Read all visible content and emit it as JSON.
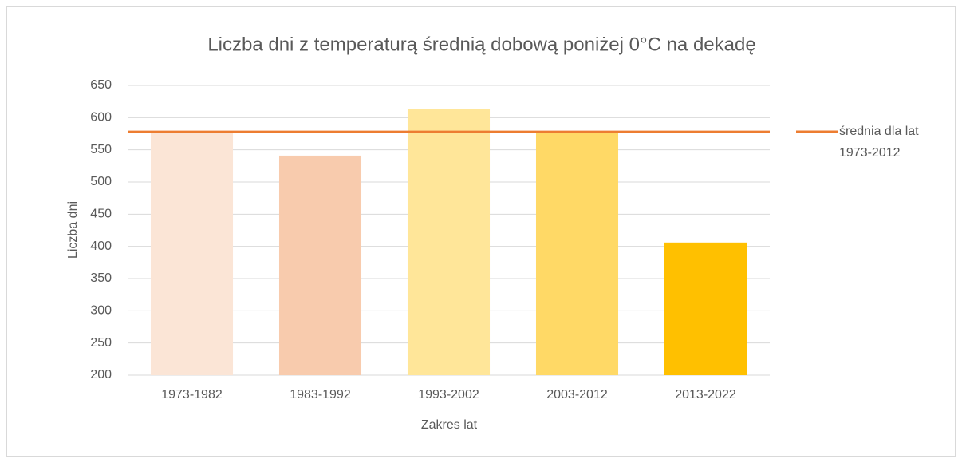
{
  "chart_data": {
    "type": "bar",
    "title": "Liczba dni z temperaturą średnią dobową poniżej 0°C na dekadę",
    "x_label": "Zakres lat",
    "y_label": "Liczba dni",
    "categories": [
      "1973-1982",
      "1983-1992",
      "1993-2002",
      "2003-2012",
      "2013-2022"
    ],
    "values": [
      578,
      541,
      613,
      578,
      406
    ],
    "colors": [
      "#fbe5d6",
      "#f8cbad",
      "#ffe699",
      "#ffd966",
      "#ffc000"
    ],
    "reference_line": {
      "name": "średnia dla lat 1973-2012",
      "value": 578,
      "color": "#ed7d31"
    },
    "ylim": [
      200,
      650
    ],
    "yticks": [
      200,
      250,
      300,
      350,
      400,
      450,
      500,
      550,
      600,
      650
    ],
    "grid": true,
    "legend": "right"
  }
}
